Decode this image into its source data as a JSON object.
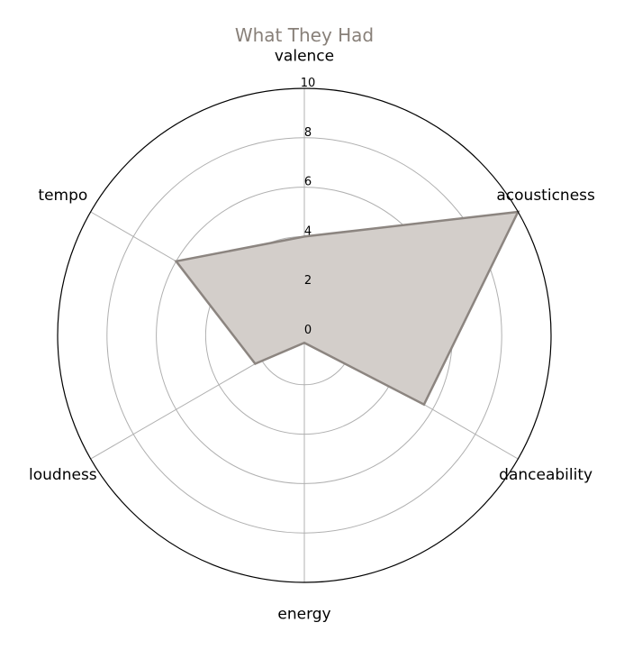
{
  "chart_data": {
    "type": "radar",
    "title": "What They Had",
    "axes": [
      "valence",
      "acousticness",
      "danceability",
      "energy",
      "loudness",
      "tempo"
    ],
    "series": [
      {
        "values": [
          4.0,
          10.0,
          5.6,
          0.3,
          2.3,
          6.0
        ]
      }
    ],
    "rlim": [
      0,
      10
    ],
    "r_ticks": [
      0,
      2,
      4,
      6,
      8,
      10
    ],
    "grid": true,
    "colors": {
      "title": "#888079",
      "fill": "#d3ceca",
      "line": "#8c8580",
      "grid": "#b0b0b0",
      "spine": "#000000"
    }
  }
}
